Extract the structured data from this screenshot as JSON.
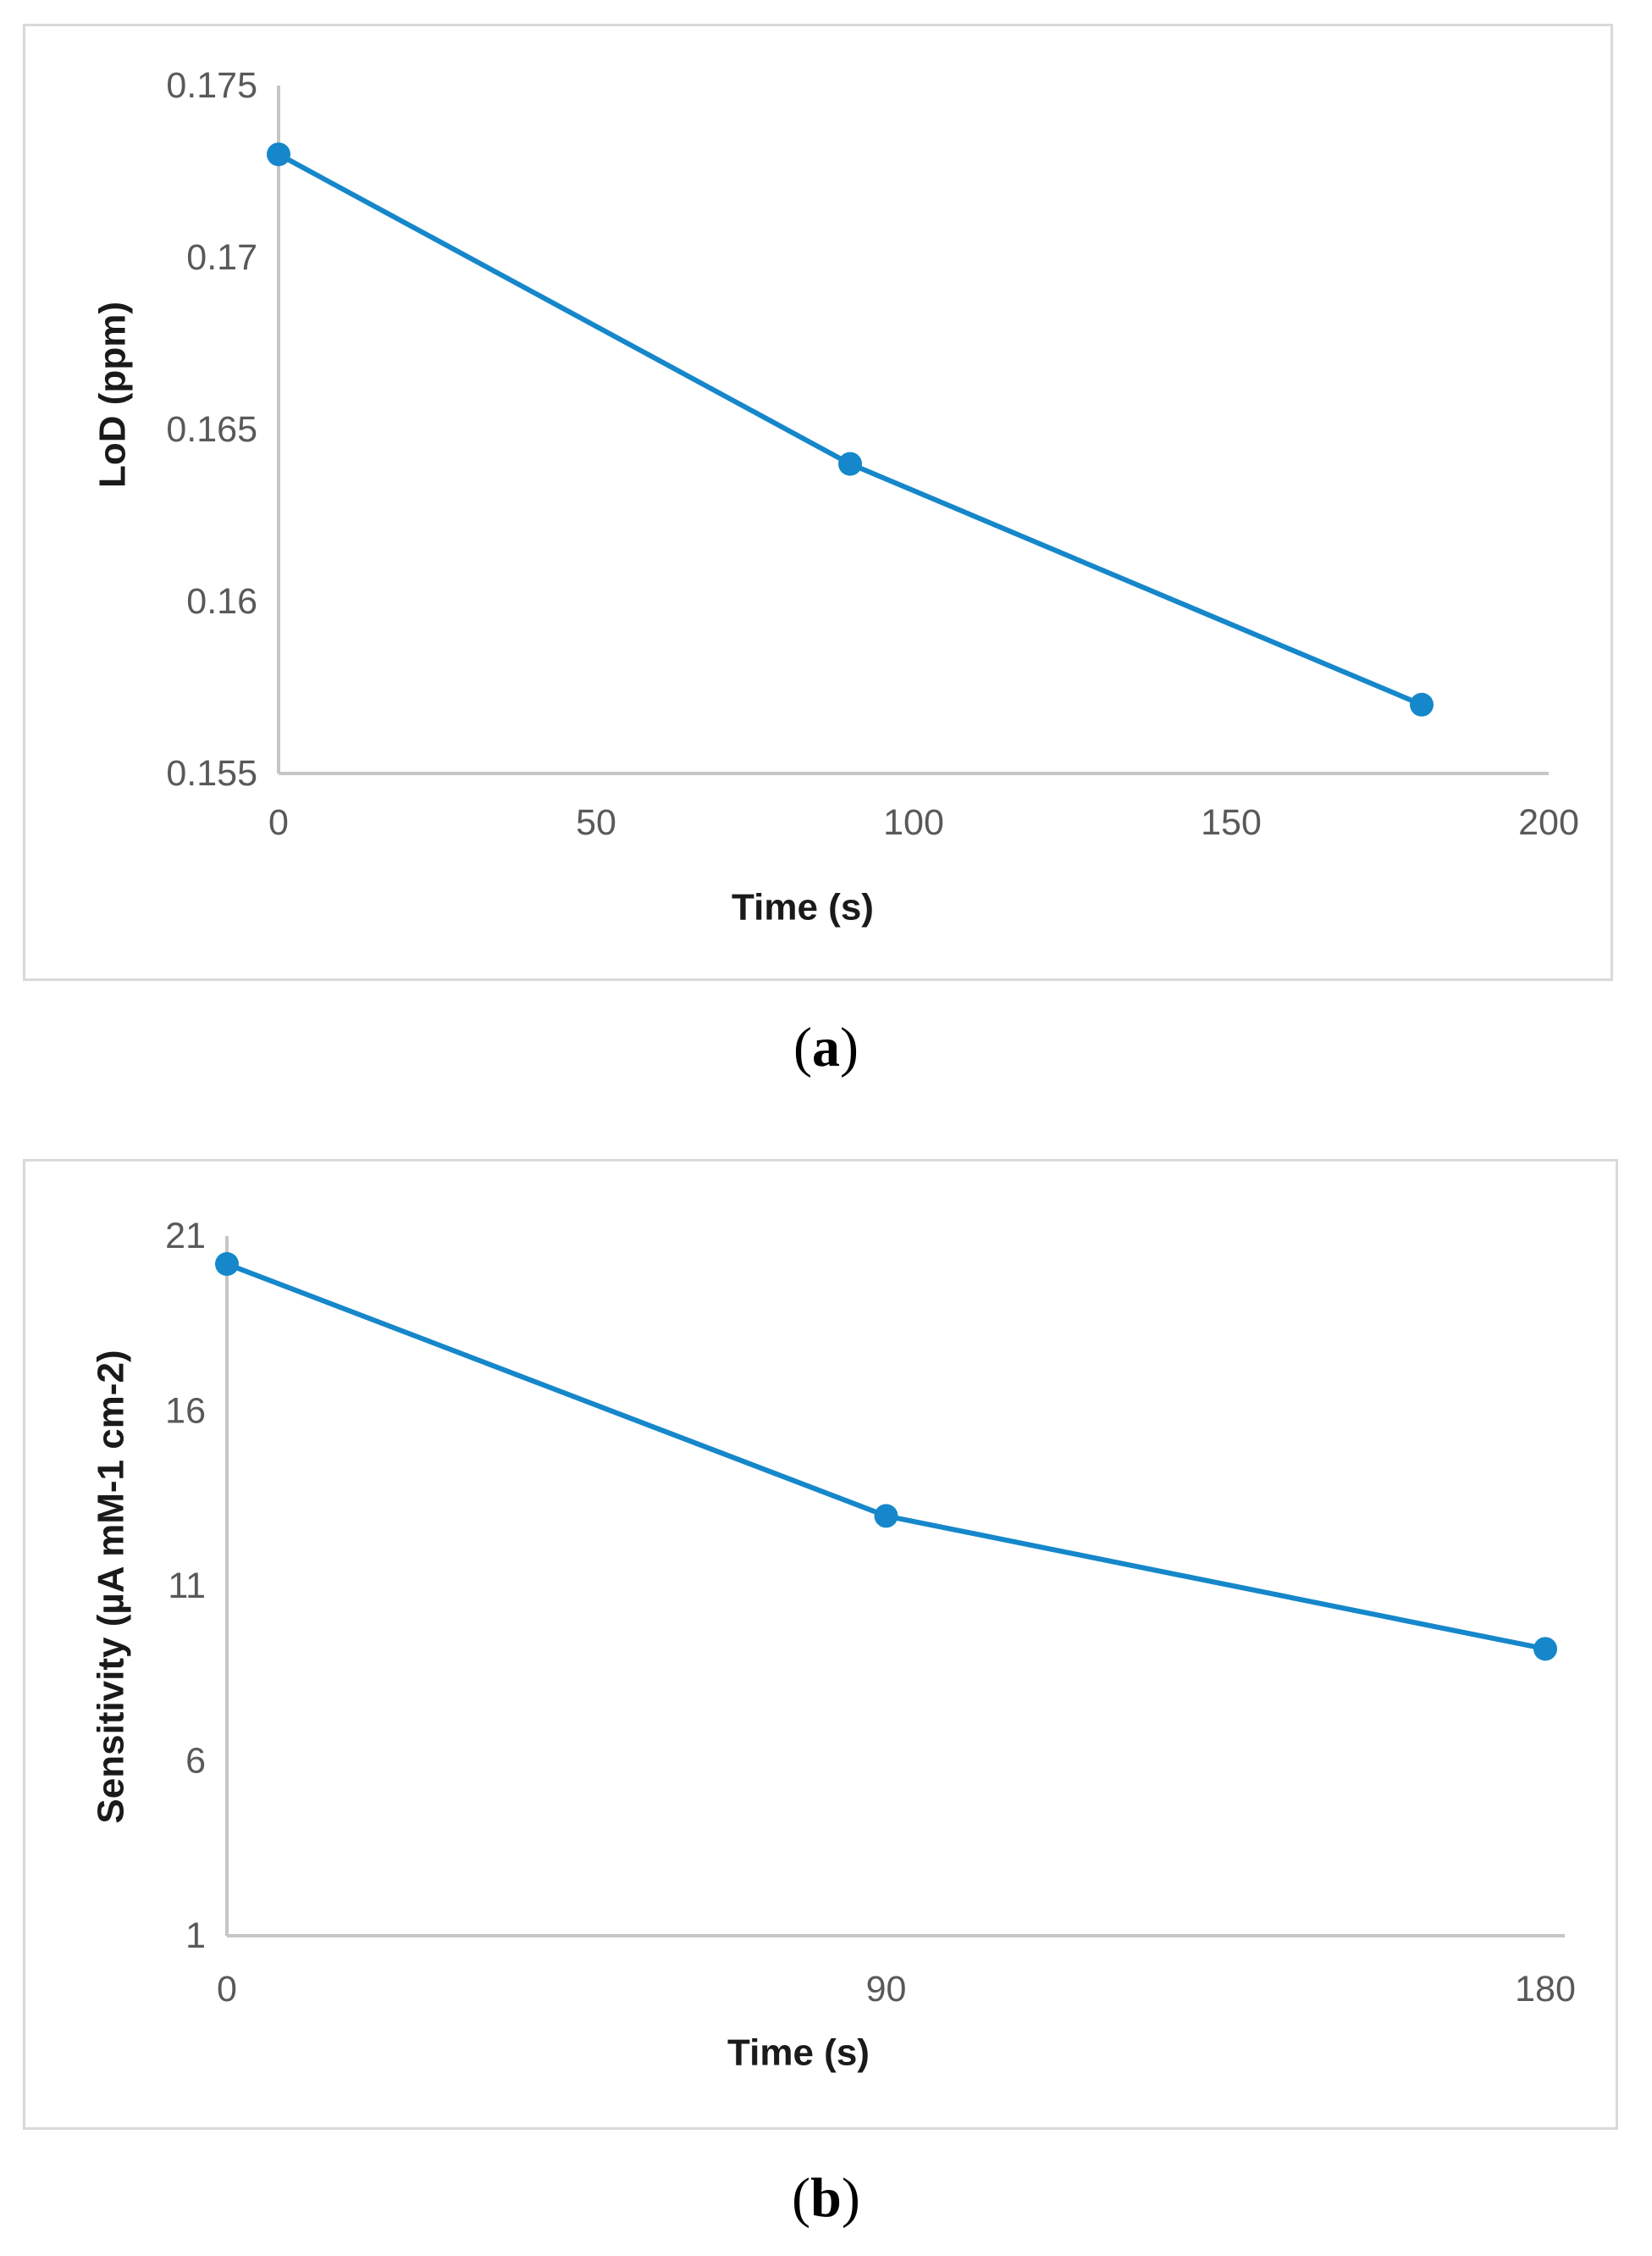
{
  "page": {
    "background": "#ffffff"
  },
  "style": {
    "series_color": "#1587CA",
    "axis_line_color": "#c6c6c6",
    "tick_label_color": "#595959",
    "axis_title_color": "#1a1a1a",
    "panel_border_color": "#d9d9d9"
  },
  "captions": {
    "a": {
      "open": "(",
      "letter": "a",
      "close": ")"
    },
    "b": {
      "open": "(",
      "letter": "b",
      "close": ")"
    }
  },
  "chart_data": [
    {
      "id": "a",
      "type": "line",
      "title": "",
      "xlabel": "Time (s)",
      "ylabel": "LoD (ppm)",
      "x": [
        0,
        90,
        180
      ],
      "y": [
        0.173,
        0.164,
        0.157
      ],
      "xlim": [
        0,
        200
      ],
      "ylim": [
        0.155,
        0.175
      ],
      "x_tick_values": [
        0,
        50,
        100,
        150,
        200
      ],
      "x_tick_labels": [
        "0",
        "50",
        "100",
        "150",
        "200"
      ],
      "y_tick_values": [
        0.155,
        0.16,
        0.165,
        0.17,
        0.175
      ],
      "y_tick_labels": [
        "0.155",
        "0.16",
        "0.165",
        "0.17",
        "0.175"
      ],
      "grid": false,
      "legend_position": "none",
      "marker": "circle",
      "line_color": "#1587CA"
    },
    {
      "id": "b",
      "type": "line",
      "title": "",
      "xlabel": "Time (s)",
      "ylabel": "Sensitivity (µA mM-1 cm-2)",
      "x": [
        0,
        90,
        180
      ],
      "y": [
        20.2,
        13.0,
        9.2
      ],
      "xlim": [
        0,
        180
      ],
      "ylim": [
        1,
        21
      ],
      "x_tick_values": [
        0,
        90,
        180
      ],
      "x_tick_labels": [
        "0",
        "90",
        "180"
      ],
      "y_tick_values": [
        1,
        6,
        11,
        16,
        21
      ],
      "y_tick_labels": [
        "1",
        "6",
        "11",
        "16",
        "21"
      ],
      "grid": false,
      "legend_position": "none",
      "marker": "circle",
      "line_color": "#1587CA"
    }
  ]
}
